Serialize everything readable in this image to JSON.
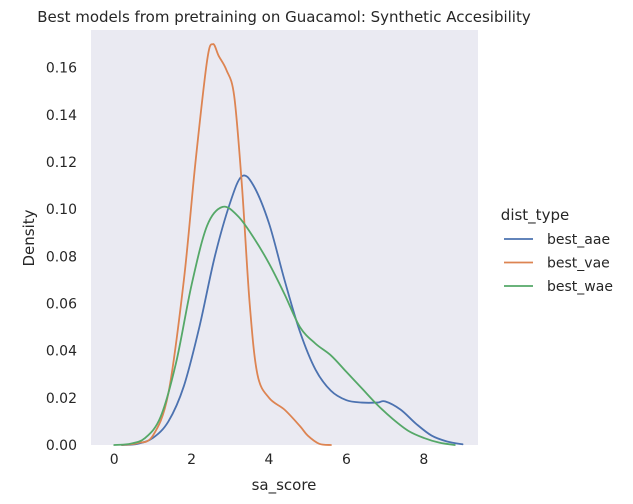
{
  "chart_data": {
    "type": "line",
    "title": "Best models from pretraining on Guacamol: Synthetic Accesibility",
    "xlabel": "sa_score",
    "ylabel": "Density",
    "xlim": [
      -0.6,
      9.4
    ],
    "ylim": [
      0,
      0.176
    ],
    "x_ticks": [
      0,
      2,
      4,
      6,
      8
    ],
    "x_tick_labels": [
      "0",
      "2",
      "4",
      "6",
      "8"
    ],
    "y_ticks": [
      0,
      0.02,
      0.04,
      0.06,
      0.08,
      0.1,
      0.12,
      0.14,
      0.16
    ],
    "y_tick_labels": [
      "0.00",
      "0.02",
      "0.04",
      "0.06",
      "0.08",
      "0.10",
      "0.12",
      "0.14",
      "0.16"
    ],
    "grid": false,
    "background": "#eaeaf2",
    "legend": {
      "title": "dist_type",
      "placement": "right",
      "entries": [
        "best_aae",
        "best_vae",
        "best_wae"
      ]
    },
    "series": [
      {
        "name": "best_aae",
        "color": "#4c72b0",
        "points": [
          [
            0.2,
            0.0
          ],
          [
            0.6,
            0.0005
          ],
          [
            1.0,
            0.003
          ],
          [
            1.4,
            0.01
          ],
          [
            1.8,
            0.025
          ],
          [
            2.2,
            0.05
          ],
          [
            2.6,
            0.08
          ],
          [
            3.0,
            0.103
          ],
          [
            3.3,
            0.114
          ],
          [
            3.6,
            0.11
          ],
          [
            4.0,
            0.094
          ],
          [
            4.4,
            0.07
          ],
          [
            4.8,
            0.048
          ],
          [
            5.2,
            0.032
          ],
          [
            5.6,
            0.023
          ],
          [
            6.0,
            0.019
          ],
          [
            6.4,
            0.018
          ],
          [
            6.8,
            0.018
          ],
          [
            7.0,
            0.0185
          ],
          [
            7.4,
            0.015
          ],
          [
            7.8,
            0.009
          ],
          [
            8.2,
            0.004
          ],
          [
            8.6,
            0.0015
          ],
          [
            9.0,
            0.0003
          ]
        ]
      },
      {
        "name": "best_vae",
        "color": "#dd8452",
        "points": [
          [
            0.2,
            0.0
          ],
          [
            0.6,
            0.0008
          ],
          [
            1.0,
            0.004
          ],
          [
            1.4,
            0.022
          ],
          [
            1.8,
            0.07
          ],
          [
            2.1,
            0.12
          ],
          [
            2.4,
            0.163
          ],
          [
            2.55,
            0.17
          ],
          [
            2.7,
            0.165
          ],
          [
            2.9,
            0.159
          ],
          [
            3.1,
            0.148
          ],
          [
            3.3,
            0.11
          ],
          [
            3.5,
            0.06
          ],
          [
            3.7,
            0.03
          ],
          [
            4.0,
            0.02
          ],
          [
            4.4,
            0.015
          ],
          [
            4.8,
            0.008
          ],
          [
            5.0,
            0.004
          ],
          [
            5.3,
            0.0005
          ],
          [
            5.6,
            0.0
          ]
        ]
      },
      {
        "name": "best_wae",
        "color": "#55a868",
        "points": [
          [
            0.0,
            0.0
          ],
          [
            0.4,
            0.0005
          ],
          [
            0.8,
            0.003
          ],
          [
            1.2,
            0.012
          ],
          [
            1.6,
            0.035
          ],
          [
            2.0,
            0.068
          ],
          [
            2.4,
            0.093
          ],
          [
            2.8,
            0.101
          ],
          [
            3.2,
            0.097
          ],
          [
            3.6,
            0.088
          ],
          [
            4.0,
            0.077
          ],
          [
            4.4,
            0.064
          ],
          [
            4.8,
            0.05
          ],
          [
            5.2,
            0.043
          ],
          [
            5.6,
            0.038
          ],
          [
            6.0,
            0.031
          ],
          [
            6.4,
            0.024
          ],
          [
            6.8,
            0.017
          ],
          [
            7.2,
            0.011
          ],
          [
            7.6,
            0.006
          ],
          [
            8.0,
            0.003
          ],
          [
            8.4,
            0.001
          ],
          [
            8.8,
            0.0
          ]
        ]
      }
    ]
  }
}
